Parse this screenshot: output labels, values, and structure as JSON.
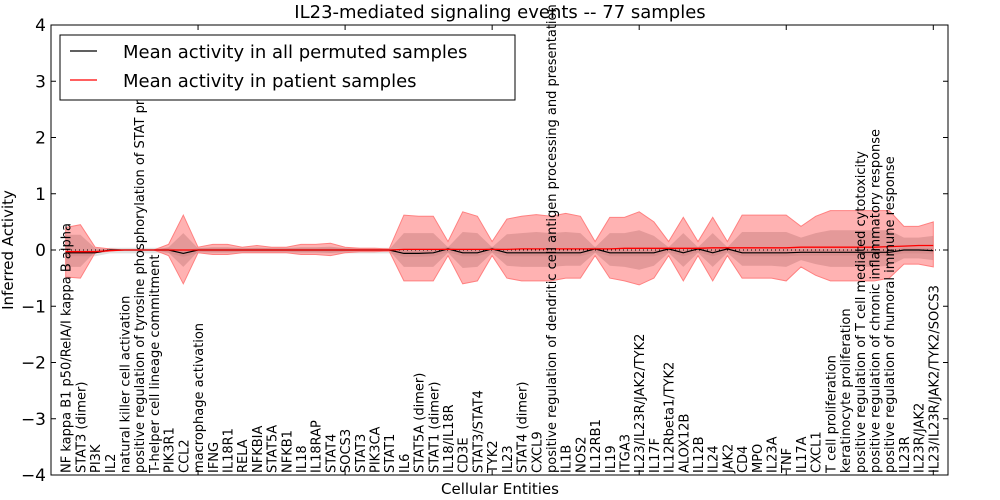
{
  "chart_data": {
    "type": "line",
    "title": "IL23-mediated signaling events -- 77 samples",
    "xlabel": "Cellular Entities",
    "ylabel": "Inferred Activity",
    "xlim": [
      0,
      61
    ],
    "ylim": [
      -4,
      4
    ],
    "yticks": [
      -4,
      -3,
      -2,
      -1,
      0,
      1,
      2,
      3,
      4
    ],
    "ytick_labels": [
      "−4",
      "−3",
      "−2",
      "−1",
      "0",
      "1",
      "2",
      "3",
      "4"
    ],
    "xticks_minor": [
      10,
      20,
      30,
      40,
      50,
      60
    ],
    "legend": {
      "placement": "top-left",
      "entries": [
        {
          "label": "Mean activity in all permuted samples",
          "color": "#000000"
        },
        {
          "label": "Mean activity in patient samples",
          "color": "#ff0000"
        }
      ]
    },
    "colors": {
      "patient_line": "#ff0000",
      "permuted_line": "#000000",
      "outer_band": "#ff9999",
      "inner_band": "#d98c8c",
      "permuted_band": "#d9d9d9"
    },
    "categories": [
      "NF kappa B1 p50/RelA/I kappa B alpha",
      "STAT3 (dimer)",
      "PI3K",
      "IL2",
      "natural killer cell activation",
      "positive regulation of tyrosine phosphorylation of STAT protein",
      "T-helper cell lineage commitment",
      "PIK3R1",
      "CCL2",
      "macrophage activation",
      "IFNG",
      "IL18R1",
      "RELA",
      "NFKBIA",
      "STAT5A",
      "NFKB1",
      "IL18",
      "IL18RAP",
      "STAT4",
      "SOCS3",
      "STAT3",
      "PIK3CA",
      "STAT1",
      "IL6",
      "STAT5A (dimer)",
      "STAT1 (dimer)",
      "IL18/IL18R",
      "CD3E",
      "STAT3/STAT4",
      "TYK2",
      "IL23",
      "STAT4 (dimer)",
      "CXCL9",
      "positive regulation of dendritic cell antigen processing and presentation",
      "IL1B",
      "NOS2",
      "IL12RB1",
      "IL19",
      "ITGA3",
      "IL23/IL23R/JAK2/TYK2",
      "IL17F",
      "IL12Rbeta1/TYK2",
      "ALOX12B",
      "IL12B",
      "IL24",
      "JAK2",
      "CD4",
      "MPO",
      "IL23A",
      "TNF",
      "IL17A",
      "CXCL1",
      "T cell proliferation",
      "keratinocyte proliferation",
      "positive regulation of T cell mediated cytotoxicity",
      "positive regulation of chronic inflammatory response",
      "positive regulation of humoral immune response",
      "IL23R",
      "IL23R/JAK2",
      "IL23/IL23R/JAK2/TYK2/SOCS3"
    ],
    "series": [
      {
        "name": "Mean activity in patient samples",
        "values": [
          -0.03,
          -0.03,
          -0.03,
          -0.01,
          0.0,
          0.0,
          0.0,
          0.0,
          0.0,
          0.0,
          0.0,
          0.0,
          0.0,
          0.0,
          0.0,
          0.0,
          0.0,
          0.0,
          0.0,
          0.0,
          0.0,
          0.0,
          0.0,
          0.01,
          0.01,
          0.01,
          0.01,
          0.01,
          0.01,
          0.01,
          0.01,
          0.02,
          0.02,
          0.02,
          0.02,
          0.02,
          0.02,
          0.02,
          0.03,
          0.03,
          0.03,
          0.03,
          0.03,
          0.03,
          0.04,
          0.04,
          0.04,
          0.04,
          0.04,
          0.04,
          0.05,
          0.05,
          0.05,
          0.05,
          0.05,
          0.05,
          0.06,
          0.07,
          0.08,
          0.08
        ]
      },
      {
        "name": "Mean activity in all permuted samples",
        "values": [
          -0.05,
          -0.05,
          -0.05,
          0.0,
          0.0,
          0.0,
          0.0,
          0.0,
          -0.06,
          0.0,
          0.0,
          0.0,
          0.0,
          0.0,
          0.0,
          0.0,
          0.0,
          0.0,
          0.0,
          0.0,
          0.0,
          0.0,
          0.0,
          -0.06,
          -0.06,
          -0.05,
          0.02,
          -0.05,
          -0.05,
          0.02,
          -0.05,
          -0.05,
          -0.05,
          -0.05,
          -0.05,
          -0.05,
          0.02,
          -0.05,
          -0.05,
          -0.05,
          -0.05,
          0.02,
          -0.05,
          0.02,
          -0.05,
          0.02,
          -0.05,
          -0.05,
          -0.05,
          -0.05,
          -0.04,
          -0.04,
          -0.04,
          -0.04,
          -0.04,
          -0.04,
          -0.04,
          0.0,
          0.0,
          -0.01
        ]
      },
      {
        "name": "Patient samples upper band (outer)",
        "values": [
          0.4,
          0.45,
          0.05,
          0.02,
          0.0,
          0.0,
          0.0,
          0.1,
          0.62,
          0.05,
          0.1,
          0.1,
          0.05,
          0.08,
          0.05,
          0.05,
          0.1,
          0.1,
          0.12,
          0.05,
          0.03,
          0.03,
          0.02,
          0.62,
          0.6,
          0.6,
          0.15,
          0.68,
          0.6,
          0.15,
          0.55,
          0.6,
          0.63,
          0.6,
          0.65,
          0.6,
          0.15,
          0.58,
          0.58,
          0.68,
          0.5,
          0.15,
          0.58,
          0.15,
          0.58,
          0.15,
          0.62,
          0.62,
          0.62,
          0.62,
          0.42,
          0.6,
          0.7,
          0.7,
          0.7,
          0.7,
          0.7,
          0.42,
          0.42,
          0.5
        ]
      },
      {
        "name": "Patient samples lower band (outer)",
        "values": [
          -0.48,
          -0.5,
          -0.05,
          -0.02,
          0.0,
          0.0,
          0.0,
          -0.1,
          -0.6,
          -0.05,
          -0.08,
          -0.08,
          -0.05,
          -0.05,
          -0.05,
          -0.05,
          -0.08,
          -0.08,
          -0.1,
          -0.05,
          -0.03,
          -0.03,
          -0.02,
          -0.55,
          -0.55,
          -0.55,
          -0.1,
          -0.6,
          -0.55,
          -0.1,
          -0.5,
          -0.55,
          -0.55,
          -0.55,
          -0.5,
          -0.5,
          -0.1,
          -0.5,
          -0.55,
          -0.62,
          -0.5,
          -0.1,
          -0.55,
          -0.1,
          -0.55,
          -0.1,
          -0.5,
          -0.5,
          -0.5,
          -0.55,
          -0.3,
          -0.45,
          -0.55,
          -0.55,
          -0.55,
          -0.55,
          -0.5,
          -0.25,
          -0.25,
          -0.3
        ]
      },
      {
        "name": "Patient samples upper band (inner)",
        "values": [
          0.27,
          0.27,
          0.03,
          0.01,
          0.0,
          0.0,
          0.0,
          0.05,
          0.3,
          0.03,
          0.05,
          0.05,
          0.03,
          0.04,
          0.03,
          0.03,
          0.05,
          0.05,
          0.06,
          0.03,
          0.02,
          0.02,
          0.01,
          0.3,
          0.3,
          0.3,
          0.05,
          0.32,
          0.3,
          0.05,
          0.28,
          0.3,
          0.32,
          0.3,
          0.32,
          0.3,
          0.05,
          0.3,
          0.3,
          0.35,
          0.25,
          0.05,
          0.3,
          0.05,
          0.3,
          0.05,
          0.32,
          0.32,
          0.32,
          0.32,
          0.22,
          0.3,
          0.35,
          0.35,
          0.35,
          0.35,
          0.35,
          0.22,
          0.22,
          0.25
        ]
      },
      {
        "name": "Patient samples lower band (inner)",
        "values": [
          -0.3,
          -0.3,
          -0.03,
          -0.01,
          0.0,
          0.0,
          0.0,
          -0.05,
          -0.3,
          -0.03,
          -0.04,
          -0.04,
          -0.03,
          -0.03,
          -0.03,
          -0.03,
          -0.04,
          -0.04,
          -0.05,
          -0.03,
          -0.02,
          -0.02,
          -0.01,
          -0.3,
          -0.3,
          -0.3,
          -0.05,
          -0.32,
          -0.3,
          -0.05,
          -0.28,
          -0.3,
          -0.3,
          -0.3,
          -0.28,
          -0.28,
          -0.05,
          -0.28,
          -0.3,
          -0.35,
          -0.28,
          -0.05,
          -0.3,
          -0.05,
          -0.3,
          -0.05,
          -0.28,
          -0.28,
          -0.28,
          -0.3,
          -0.18,
          -0.25,
          -0.3,
          -0.3,
          -0.3,
          -0.3,
          -0.28,
          -0.15,
          -0.15,
          -0.18
        ]
      }
    ],
    "grid": false
  }
}
